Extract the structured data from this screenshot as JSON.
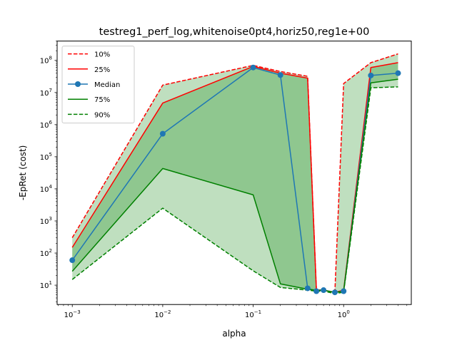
{
  "chart_data": {
    "type": "line",
    "title": "testreg1_perf_log,whitenoise0pt4,horiz50,reg1e+00",
    "xlabel": "alpha",
    "ylabel": "-EpRet (cost)",
    "xscale": "log",
    "yscale": "log",
    "xlim": [
      0.00068,
      5.6
    ],
    "ylim": [
      2.5,
      400000000
    ],
    "x_ticks": [
      {
        "value": 0.001,
        "base": "10",
        "exp": "−3"
      },
      {
        "value": 0.01,
        "base": "10",
        "exp": "−2"
      },
      {
        "value": 0.1,
        "base": "10",
        "exp": "−1"
      },
      {
        "value": 1,
        "base": "10",
        "exp": "0"
      }
    ],
    "y_ticks": [
      {
        "value": 10,
        "base": "10",
        "exp": "1"
      },
      {
        "value": 100,
        "base": "10",
        "exp": "2"
      },
      {
        "value": 1000,
        "base": "10",
        "exp": "3"
      },
      {
        "value": 10000,
        "base": "10",
        "exp": "4"
      },
      {
        "value": 100000,
        "base": "10",
        "exp": "5"
      },
      {
        "value": 1000000,
        "base": "10",
        "exp": "6"
      },
      {
        "value": 10000000,
        "base": "10",
        "exp": "7"
      },
      {
        "value": 100000000,
        "base": "10",
        "exp": "8"
      }
    ],
    "x": [
      0.001,
      0.01,
      0.1,
      0.2,
      0.4,
      0.5,
      0.6,
      0.8,
      1.0,
      2.0,
      4.0
    ],
    "series": [
      {
        "name": "10%",
        "color": "#ff0000",
        "style": "dashed",
        "values": [
          300,
          17000000,
          70000000,
          45000000,
          32000000,
          7,
          7,
          6,
          19000000,
          85000000,
          160000000
        ]
      },
      {
        "name": "25%",
        "color": "#ff0000",
        "style": "solid",
        "values": [
          150,
          4700000,
          65000000,
          40000000,
          28000000,
          7,
          7,
          6,
          7,
          60000000,
          85000000
        ]
      },
      {
        "name": "Median",
        "color": "#1f77b4",
        "style": "solid",
        "marker": "circle",
        "values": [
          60,
          520000,
          60000000,
          35000000,
          8,
          6.5,
          7,
          6,
          6.5,
          34000000,
          40000000
        ]
      },
      {
        "name": "75%",
        "color": "#008000",
        "style": "solid",
        "values": [
          27,
          43000,
          6500,
          11,
          7.5,
          7,
          7,
          6,
          6.5,
          20000000,
          26000000
        ]
      },
      {
        "name": "90%",
        "color": "#008000",
        "style": "dashed",
        "values": [
          15,
          2500,
          28,
          8.5,
          7,
          6.5,
          6.5,
          5.5,
          6,
          14000000,
          15000000
        ]
      }
    ],
    "bands": [
      {
        "lower": "90%",
        "upper": "10%",
        "color": "#008000",
        "opacity": 0.25
      },
      {
        "lower": "75%",
        "upper": "25%",
        "color": "#008000",
        "opacity": 0.25
      }
    ],
    "legend": {
      "position": "top-left",
      "entries": [
        "10%",
        "25%",
        "Median",
        "75%",
        "90%"
      ]
    },
    "grid": false
  }
}
